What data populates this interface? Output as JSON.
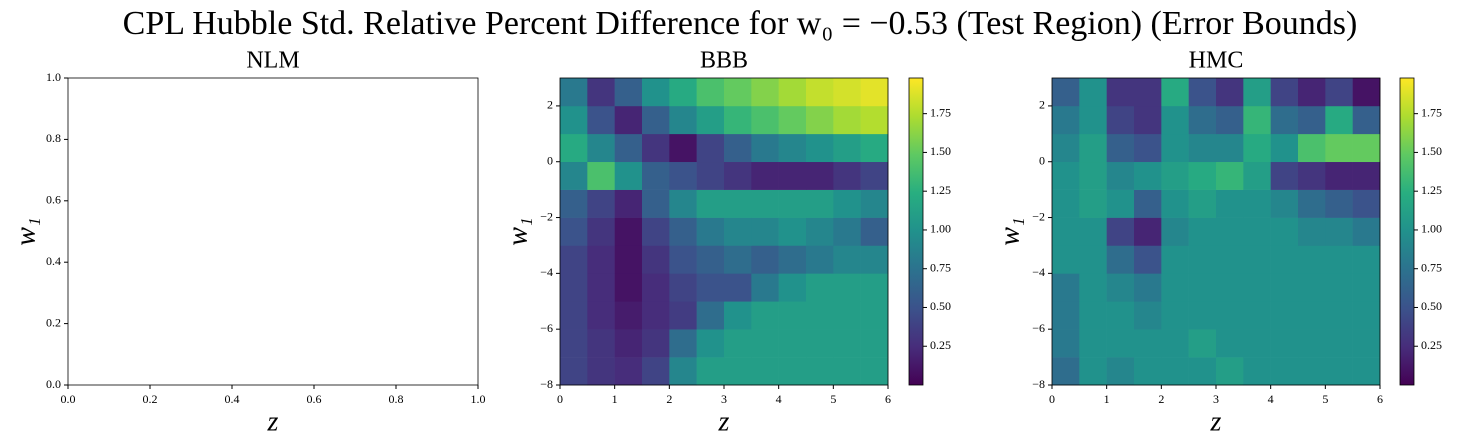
{
  "title": "CPL Hubble Std. Relative Percent Difference for w₀ = −0.53 (Test Region) (Error Bounds)",
  "chart_data": [
    {
      "type": "axes",
      "title": "NLM",
      "xlabel": "z",
      "ylabel": "w₁",
      "xlim": [
        0,
        1
      ],
      "ylim": [
        0,
        1
      ],
      "xticks": [
        {
          "value": 0,
          "label": "0.0"
        },
        0.2,
        0.4,
        0.6,
        0.8,
        {
          "value": 1,
          "label": "1.0"
        }
      ],
      "yticks": [
        {
          "value": 0,
          "label": "0.0"
        },
        0.2,
        0.4,
        0.6,
        0.8,
        {
          "value": 1,
          "label": "1.0"
        }
      ]
    },
    {
      "type": "heatmap",
      "title": "BBB",
      "xlabel": "z",
      "ylabel": "w₁",
      "colormap": "viridis",
      "xlim": [
        0,
        6
      ],
      "ylim": [
        -8,
        3
      ],
      "xticks": [
        0,
        1,
        2,
        3,
        4,
        5,
        6
      ],
      "yticks": [
        {
          "value": -8,
          "label": "−8"
        },
        {
          "value": -6,
          "label": "−6"
        },
        {
          "value": -4,
          "label": "−4"
        },
        {
          "value": -2,
          "label": "−2"
        },
        0,
        2
      ],
      "xbins": [
        0,
        0.5,
        1,
        1.5,
        2,
        2.5,
        3,
        3.5,
        4,
        4.5,
        5,
        5.5,
        6
      ],
      "ybins": [
        -8,
        -7,
        -6,
        -5,
        -4,
        -3,
        -2,
        -1,
        0,
        1,
        2,
        3
      ],
      "values": [
        [
          0.4,
          0.3,
          0.25,
          0.4,
          0.9,
          1.1,
          1.1,
          1.1,
          1.1,
          1.1,
          1.1,
          1.1
        ],
        [
          0.4,
          0.3,
          0.2,
          0.3,
          0.7,
          1.0,
          1.1,
          1.1,
          1.1,
          1.1,
          1.1,
          1.1
        ],
        [
          0.4,
          0.25,
          0.15,
          0.25,
          0.35,
          0.7,
          1.0,
          1.1,
          1.1,
          1.1,
          1.1,
          1.1
        ],
        [
          0.4,
          0.25,
          0.1,
          0.25,
          0.4,
          0.5,
          0.5,
          0.8,
          1.0,
          1.1,
          1.1,
          1.1
        ],
        [
          0.4,
          0.25,
          0.1,
          0.3,
          0.5,
          0.6,
          0.7,
          0.6,
          0.7,
          0.8,
          0.9,
          0.9
        ],
        [
          0.5,
          0.3,
          0.1,
          0.4,
          0.6,
          0.8,
          0.9,
          0.9,
          1.0,
          0.9,
          0.8,
          0.6
        ],
        [
          0.6,
          0.4,
          0.2,
          0.6,
          0.9,
          1.1,
          1.1,
          1.1,
          1.1,
          1.1,
          1.0,
          0.9
        ],
        [
          0.9,
          1.4,
          1.0,
          0.6,
          0.5,
          0.4,
          0.3,
          0.2,
          0.2,
          0.2,
          0.3,
          0.4
        ],
        [
          1.2,
          0.9,
          0.6,
          0.3,
          0.1,
          0.4,
          0.6,
          0.8,
          0.9,
          1.0,
          1.1,
          1.2
        ],
        [
          1.0,
          0.5,
          0.2,
          0.6,
          0.9,
          1.1,
          1.3,
          1.4,
          1.5,
          1.6,
          1.7,
          1.75
        ],
        [
          0.8,
          0.3,
          0.6,
          1.0,
          1.2,
          1.4,
          1.5,
          1.6,
          1.7,
          1.8,
          1.85,
          1.9
        ]
      ],
      "clim": [
        0,
        1.98
      ],
      "cticks": [
        0.25,
        {
          "value": 0.5,
          "label": "0.50"
        },
        0.75,
        {
          "value": 1,
          "label": "1.00"
        },
        1.25,
        {
          "value": 1.5,
          "label": "1.50"
        },
        1.75
      ]
    },
    {
      "type": "heatmap",
      "title": "HMC",
      "xlabel": "z",
      "ylabel": "w₁",
      "colormap": "viridis",
      "xlim": [
        0,
        6
      ],
      "ylim": [
        -8,
        3
      ],
      "xticks": [
        0,
        1,
        2,
        3,
        4,
        5,
        6
      ],
      "yticks": [
        {
          "value": -8,
          "label": "−8"
        },
        {
          "value": -6,
          "label": "−6"
        },
        {
          "value": -4,
          "label": "−4"
        },
        {
          "value": -2,
          "label": "−2"
        },
        0,
        2
      ],
      "xbins": [
        0,
        0.5,
        1,
        1.5,
        2,
        2.5,
        3,
        3.5,
        4,
        4.5,
        5,
        5.5,
        6
      ],
      "ybins": [
        -8,
        -7,
        -6,
        -5,
        -4,
        -3,
        -2,
        -1,
        0,
        1,
        2,
        3
      ],
      "values": [
        [
          0.7,
          1.0,
          0.9,
          1.0,
          1.0,
          1.0,
          1.1,
          1.0,
          1.0,
          1.0,
          1.0,
          1.0
        ],
        [
          0.8,
          1.0,
          1.0,
          1.0,
          1.0,
          1.1,
          1.0,
          1.0,
          1.0,
          1.0,
          1.0,
          1.0
        ],
        [
          0.8,
          1.0,
          1.0,
          0.9,
          1.0,
          1.0,
          1.0,
          1.0,
          1.0,
          1.0,
          1.0,
          1.0
        ],
        [
          0.8,
          1.0,
          0.9,
          0.8,
          1.0,
          1.0,
          1.0,
          1.0,
          1.0,
          1.0,
          1.0,
          1.0
        ],
        [
          1.0,
          1.0,
          0.7,
          0.5,
          1.0,
          1.0,
          1.0,
          1.0,
          1.0,
          1.0,
          1.0,
          1.0
        ],
        [
          1.0,
          1.0,
          0.4,
          0.2,
          0.9,
          1.0,
          1.0,
          1.0,
          1.0,
          0.9,
          0.9,
          0.8
        ],
        [
          1.0,
          1.1,
          1.0,
          0.6,
          1.0,
          1.1,
          1.0,
          1.0,
          0.9,
          0.7,
          0.6,
          0.5
        ],
        [
          1.0,
          1.1,
          0.9,
          1.0,
          1.1,
          1.2,
          1.3,
          1.1,
          0.4,
          0.3,
          0.2,
          0.2
        ],
        [
          0.9,
          1.1,
          0.6,
          0.5,
          1.0,
          0.9,
          0.9,
          1.2,
          1.0,
          1.4,
          1.5,
          1.5
        ],
        [
          0.8,
          1.0,
          0.4,
          0.3,
          1.0,
          0.7,
          0.6,
          1.3,
          0.7,
          0.6,
          1.2,
          0.6
        ],
        [
          0.6,
          1.0,
          0.3,
          0.3,
          1.2,
          0.5,
          0.3,
          1.1,
          0.4,
          0.2,
          0.4,
          0.1
        ]
      ],
      "clim": [
        0,
        1.98
      ],
      "cticks": [
        0.25,
        {
          "value": 0.5,
          "label": "0.50"
        },
        0.75,
        {
          "value": 1,
          "label": "1.00"
        },
        1.25,
        {
          "value": 1.5,
          "label": "1.50"
        },
        1.75
      ]
    }
  ]
}
